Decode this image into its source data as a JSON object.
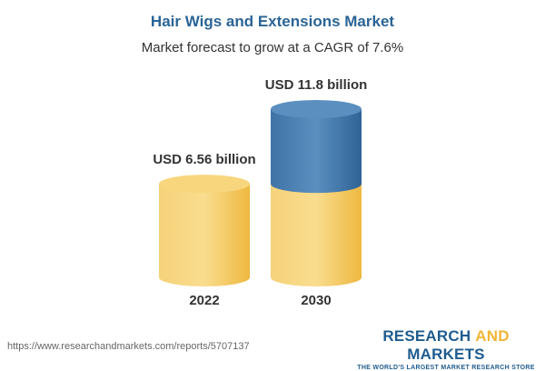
{
  "title": "Hair Wigs and Extensions Market",
  "subtitle": "Market forecast to grow at a CAGR of 7.6%",
  "chart_data": {
    "type": "bar",
    "style": "3d-cylinder",
    "categories": [
      "2022",
      "2030"
    ],
    "values": [
      6.56,
      11.8
    ],
    "data_labels": [
      "USD 6.56 billion",
      "USD 11.8 billion"
    ],
    "unit": "USD billion",
    "colors": {
      "base": "#f3c862",
      "growth": "#4a7fb0"
    }
  },
  "footer": {
    "url": "https://www.researchandmarkets.com/reports/5707137",
    "logo_part1": "RESEARCH ",
    "logo_part2": "AND",
    "logo_part3": " MARKETS",
    "tagline": "THE WORLD'S LARGEST MARKET RESEARCH STORE"
  }
}
